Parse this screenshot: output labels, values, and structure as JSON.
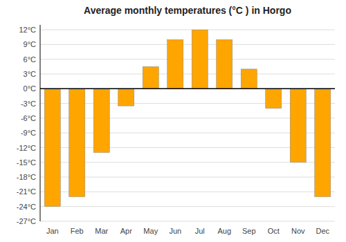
{
  "chart_data": {
    "type": "bar",
    "title": "Average monthly temperatures (°C ) in Horgo",
    "categories": [
      "Jan",
      "Feb",
      "Mar",
      "Apr",
      "May",
      "Jun",
      "Jul",
      "Aug",
      "Sep",
      "Oct",
      "Nov",
      "Dec"
    ],
    "values": [
      -24,
      -22,
      -13,
      -3.5,
      4.5,
      10,
      12,
      10,
      4,
      -4,
      -15,
      -22
    ],
    "color": "#FFA500",
    "ylim": [
      -27,
      13
    ],
    "yticks": [
      {
        "value": -27,
        "label": "-27°C"
      },
      {
        "value": -24,
        "label": "-24°C"
      },
      {
        "value": -21,
        "label": "-21°C"
      },
      {
        "value": -18,
        "label": "-18°C"
      },
      {
        "value": -15,
        "label": "-15°C"
      },
      {
        "value": -12,
        "label": "-12°C"
      },
      {
        "value": -9,
        "label": "-9°C"
      },
      {
        "value": -6,
        "label": "-6°C"
      },
      {
        "value": -3,
        "label": "-3°C"
      },
      {
        "value": 0,
        "label": "0°C"
      },
      {
        "value": 3,
        "label": "3°C"
      },
      {
        "value": 6,
        "label": "6°C"
      },
      {
        "value": 9,
        "label": "9°C"
      },
      {
        "value": 12,
        "label": "12°C"
      }
    ],
    "grid": true
  }
}
